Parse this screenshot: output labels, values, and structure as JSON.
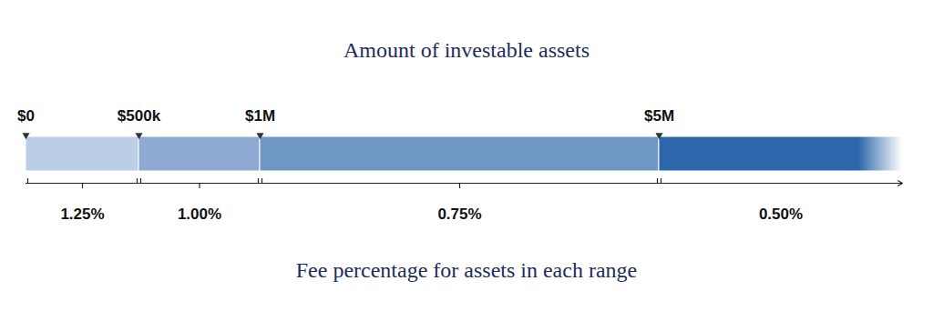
{
  "chart_data": {
    "type": "bar",
    "title": "Amount of investable assets",
    "xlabel": "Fee percentage for assets in each range",
    "xlim": [
      0,
      8000000
    ],
    "xticks": [
      {
        "value": 0,
        "label": "$0"
      },
      {
        "value": 500000,
        "label": "$500k"
      },
      {
        "value": 1000000,
        "label": "$1M"
      },
      {
        "value": 5000000,
        "label": "$5M"
      }
    ],
    "values": [
      1.25,
      1.0,
      0.75,
      0.5
    ],
    "value_labels": [
      "1.25%",
      "1.00%",
      "0.75%",
      "0.50%"
    ],
    "data_labels": true,
    "colors": [
      "#bccde6",
      "#8eaad3",
      "#6e97c6",
      "#2d66aa"
    ]
  }
}
